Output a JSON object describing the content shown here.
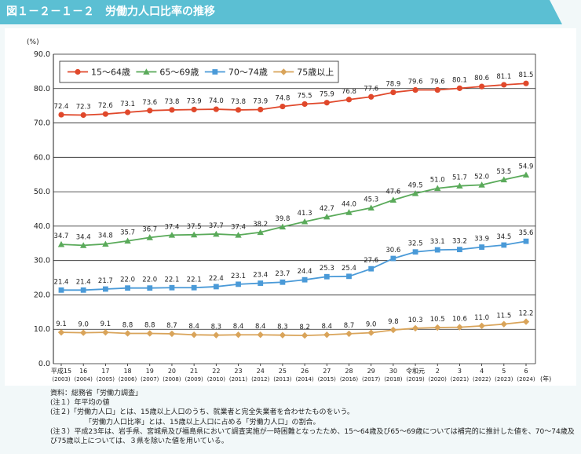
{
  "header": {
    "title": "図１－２－１－２　労働力人口比率の推移"
  },
  "chart_data": {
    "type": "line",
    "title": "労働力人口比率の推移",
    "ylabel": "(%)",
    "xlabel": "(年)",
    "ylim": [
      0,
      90
    ],
    "ytick_labels": [
      "0.0",
      "10.0",
      "20.0",
      "30.0",
      "40.0",
      "50.0",
      "60.0",
      "70.0",
      "80.0",
      "90.0"
    ],
    "categories": [
      [
        "平成15",
        "(2003)"
      ],
      [
        "16",
        "(2004)"
      ],
      [
        "17",
        "(2005)"
      ],
      [
        "18",
        "(2006)"
      ],
      [
        "19",
        "(2007)"
      ],
      [
        "20",
        "(2008)"
      ],
      [
        "21",
        "(2009)"
      ],
      [
        "22",
        "(2010)"
      ],
      [
        "23",
        "(2011)"
      ],
      [
        "24",
        "(2012)"
      ],
      [
        "25",
        "(2013)"
      ],
      [
        "26",
        "(2014)"
      ],
      [
        "27",
        "(2015)"
      ],
      [
        "28",
        "(2016)"
      ],
      [
        "29",
        "(2017)"
      ],
      [
        "30",
        "(2018)"
      ],
      [
        "令和元",
        "(2019)"
      ],
      [
        "2",
        "(2020)"
      ],
      [
        "3",
        "(2021)"
      ],
      [
        "4",
        "(2022)"
      ],
      [
        "5",
        "(2023)"
      ],
      [
        "6",
        "(2024)"
      ]
    ],
    "series": [
      {
        "name": "15～64歳",
        "color": "#e0482b",
        "marker": "circle",
        "values": [
          72.4,
          72.3,
          72.6,
          73.1,
          73.6,
          73.8,
          73.9,
          74.0,
          73.8,
          73.9,
          74.8,
          75.5,
          75.9,
          76.8,
          77.6,
          78.9,
          79.6,
          79.6,
          80.1,
          80.6,
          81.1,
          81.5
        ]
      },
      {
        "name": "65～69歳",
        "color": "#5aaa5a",
        "marker": "triangle",
        "values": [
          34.7,
          34.4,
          34.8,
          35.7,
          36.7,
          37.4,
          37.5,
          37.7,
          37.4,
          38.2,
          39.8,
          41.3,
          42.7,
          44.0,
          45.3,
          47.6,
          49.5,
          51.0,
          51.7,
          52.0,
          53.5,
          54.9
        ]
      },
      {
        "name": "70～74歳",
        "color": "#4a9ad8",
        "marker": "square",
        "values": [
          21.4,
          21.4,
          21.7,
          22.0,
          22.0,
          22.1,
          22.1,
          22.4,
          23.1,
          23.4,
          23.7,
          24.4,
          25.3,
          25.4,
          27.6,
          30.6,
          32.5,
          33.1,
          33.2,
          33.9,
          34.5,
          35.6
        ]
      },
      {
        "name": "75歳以上",
        "color": "#d9a45a",
        "marker": "diamond",
        "values": [
          9.1,
          9.0,
          9.1,
          8.8,
          8.8,
          8.7,
          8.4,
          8.3,
          8.4,
          8.4,
          8.3,
          8.2,
          8.4,
          8.7,
          9.0,
          9.8,
          10.3,
          10.5,
          10.6,
          11.0,
          11.5,
          12.2
        ]
      }
    ],
    "legend_position": "top-left",
    "grid": true
  },
  "notes": {
    "source": "資料：総務省「労働力調査」",
    "note1": "(注１）年平均の値",
    "note2_a": "(注２)「労働力人口」とは、15歳以上人口のうち、就業者と完全失業者を合わせたものをいう。",
    "note2_b": "「労働力人口比率」とは、15歳以上人口に占める「労働力人口」の割合。",
    "note3_a": "(注３）平成23年は、岩手県、宮城県及び福島県において調査実施が一時困難となったため、15～64歳及び65～69歳については補完的に推計した値を、70～74歳及び75歳以上については、３県を除いた値を用いている。"
  }
}
